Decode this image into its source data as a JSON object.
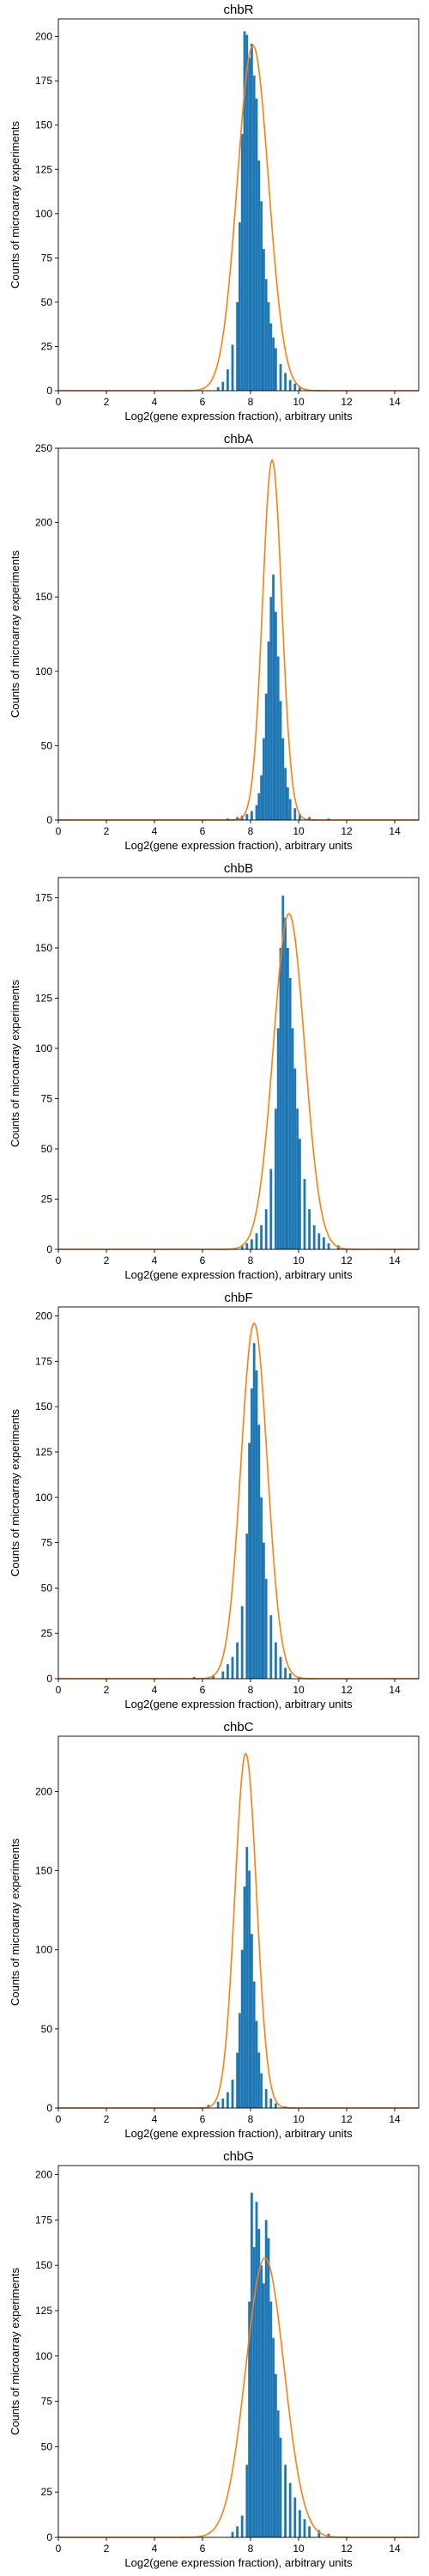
{
  "figure": {
    "xlabel": "Log2(gene expression fraction), arbitrary units",
    "ylabel": "Counts of microarray experiments"
  },
  "chart_data": [
    {
      "type": "bar",
      "title": "chbR",
      "xlabel": "Log2(gene expression fraction), arbitrary units",
      "ylabel": "Counts of microarray experiments",
      "xlim": [
        0,
        15
      ],
      "ylim": [
        0,
        210
      ],
      "xticks": [
        0,
        2,
        4,
        6,
        8,
        10,
        12,
        14
      ],
      "yticks": [
        0,
        25,
        50,
        75,
        100,
        125,
        150,
        175,
        200
      ],
      "fit": {
        "mean": 8.1,
        "sd": 0.65,
        "peak": 195
      },
      "series": [
        {
          "type": "histogram",
          "color": "#1f77b4",
          "bins": [
            [
              6.6,
              2
            ],
            [
              6.8,
              5
            ],
            [
              7.0,
              12
            ],
            [
              7.2,
              26
            ],
            [
              7.4,
              50
            ],
            [
              7.5,
              95
            ],
            [
              7.6,
              145
            ],
            [
              7.7,
              203
            ],
            [
              7.8,
              201
            ],
            [
              7.9,
              188
            ],
            [
              8.0,
              196
            ],
            [
              8.1,
              178
            ],
            [
              8.2,
              165
            ],
            [
              8.3,
              130
            ],
            [
              8.4,
              107
            ],
            [
              8.5,
              80
            ],
            [
              8.6,
              63
            ],
            [
              8.7,
              50
            ],
            [
              8.8,
              38
            ],
            [
              8.9,
              30
            ],
            [
              9.0,
              24
            ],
            [
              9.2,
              15
            ],
            [
              9.4,
              10
            ],
            [
              9.6,
              6
            ],
            [
              9.8,
              4
            ],
            [
              10.0,
              2
            ]
          ]
        },
        {
          "type": "line",
          "color": "#ff7f0e"
        }
      ]
    },
    {
      "type": "bar",
      "title": "chbA",
      "xlabel": "Log2(gene expression fraction), arbitrary units",
      "ylabel": "Counts of microarray experiments",
      "xlim": [
        0,
        15
      ],
      "ylim": [
        0,
        250
      ],
      "xticks": [
        0,
        2,
        4,
        6,
        8,
        10,
        12,
        14
      ],
      "yticks": [
        0,
        50,
        100,
        150,
        200,
        250
      ],
      "fit": {
        "mean": 8.9,
        "sd": 0.4,
        "peak": 242
      },
      "series": [
        {
          "type": "histogram",
          "color": "#1f77b4",
          "bins": [
            [
              7.0,
              1
            ],
            [
              7.4,
              2
            ],
            [
              7.6,
              3
            ],
            [
              7.8,
              4
            ],
            [
              8.0,
              6
            ],
            [
              8.2,
              10
            ],
            [
              8.3,
              18
            ],
            [
              8.4,
              30
            ],
            [
              8.5,
              55
            ],
            [
              8.6,
              85
            ],
            [
              8.7,
              120
            ],
            [
              8.8,
              150
            ],
            [
              8.9,
              165
            ],
            [
              9.0,
              140
            ],
            [
              9.1,
              110
            ],
            [
              9.2,
              80
            ],
            [
              9.3,
              55
            ],
            [
              9.4,
              35
            ],
            [
              9.5,
              22
            ],
            [
              9.6,
              14
            ],
            [
              9.8,
              8
            ],
            [
              10.0,
              4
            ],
            [
              10.4,
              2
            ],
            [
              11.2,
              1
            ]
          ]
        },
        {
          "type": "line",
          "color": "#ff7f0e"
        }
      ]
    },
    {
      "type": "bar",
      "title": "chbB",
      "xlabel": "Log2(gene expression fraction), arbitrary units",
      "ylabel": "Counts of microarray experiments",
      "xlim": [
        0,
        15
      ],
      "ylim": [
        0,
        185
      ],
      "xticks": [
        0,
        2,
        4,
        6,
        8,
        10,
        12,
        14
      ],
      "yticks": [
        0,
        25,
        50,
        75,
        100,
        125,
        150,
        175
      ],
      "fit": {
        "mean": 9.6,
        "sd": 0.65,
        "peak": 167
      },
      "series": [
        {
          "type": "histogram",
          "color": "#1f77b4",
          "bins": [
            [
              7.6,
              2
            ],
            [
              7.8,
              3
            ],
            [
              8.0,
              5
            ],
            [
              8.2,
              8
            ],
            [
              8.4,
              12
            ],
            [
              8.6,
              20
            ],
            [
              8.8,
              40
            ],
            [
              9.0,
              70
            ],
            [
              9.1,
              110
            ],
            [
              9.2,
              150
            ],
            [
              9.3,
              176
            ],
            [
              9.4,
              165
            ],
            [
              9.5,
              150
            ],
            [
              9.6,
              135
            ],
            [
              9.7,
              110
            ],
            [
              9.8,
              90
            ],
            [
              9.9,
              70
            ],
            [
              10.0,
              55
            ],
            [
              10.2,
              35
            ],
            [
              10.4,
              20
            ],
            [
              10.6,
              12
            ],
            [
              10.8,
              8
            ],
            [
              11.0,
              6
            ],
            [
              11.2,
              3
            ],
            [
              11.6,
              2
            ]
          ]
        },
        {
          "type": "line",
          "color": "#ff7f0e"
        }
      ]
    },
    {
      "type": "bar",
      "title": "chbF",
      "xlabel": "Log2(gene expression fraction), arbitrary units",
      "ylabel": "Counts of microarray experiments",
      "xlim": [
        0,
        15
      ],
      "ylim": [
        0,
        205
      ],
      "xticks": [
        0,
        2,
        4,
        6,
        8,
        10,
        12,
        14
      ],
      "yticks": [
        0,
        25,
        50,
        75,
        100,
        125,
        150,
        175,
        200
      ],
      "fit": {
        "mean": 8.15,
        "sd": 0.55,
        "peak": 196
      },
      "series": [
        {
          "type": "histogram",
          "color": "#1f77b4",
          "bins": [
            [
              5.6,
              1
            ],
            [
              6.4,
              2
            ],
            [
              6.8,
              4
            ],
            [
              7.0,
              8
            ],
            [
              7.2,
              12
            ],
            [
              7.4,
              20
            ],
            [
              7.6,
              40
            ],
            [
              7.8,
              80
            ],
            [
              7.9,
              130
            ],
            [
              8.0,
              160
            ],
            [
              8.1,
              185
            ],
            [
              8.2,
              170
            ],
            [
              8.3,
              140
            ],
            [
              8.4,
              100
            ],
            [
              8.5,
              75
            ],
            [
              8.6,
              55
            ],
            [
              8.8,
              35
            ],
            [
              9.0,
              20
            ],
            [
              9.2,
              12
            ],
            [
              9.4,
              6
            ],
            [
              9.6,
              3
            ],
            [
              10.0,
              1
            ]
          ]
        },
        {
          "type": "line",
          "color": "#ff7f0e"
        }
      ]
    },
    {
      "type": "bar",
      "title": "chbC",
      "xlabel": "Log2(gene expression fraction), arbitrary units",
      "ylabel": "Counts of microarray experiments",
      "xlim": [
        0,
        15
      ],
      "ylim": [
        0,
        235
      ],
      "xticks": [
        0,
        2,
        4,
        6,
        8,
        10,
        12,
        14
      ],
      "yticks": [
        0,
        50,
        100,
        150,
        200
      ],
      "fit": {
        "mean": 7.8,
        "sd": 0.45,
        "peak": 224
      },
      "series": [
        {
          "type": "histogram",
          "color": "#1f77b4",
          "bins": [
            [
              6.2,
              2
            ],
            [
              6.6,
              4
            ],
            [
              6.8,
              6
            ],
            [
              7.0,
              10
            ],
            [
              7.2,
              18
            ],
            [
              7.4,
              35
            ],
            [
              7.5,
              60
            ],
            [
              7.6,
              100
            ],
            [
              7.7,
              140
            ],
            [
              7.8,
              165
            ],
            [
              7.9,
              150
            ],
            [
              8.0,
              110
            ],
            [
              8.1,
              80
            ],
            [
              8.2,
              55
            ],
            [
              8.3,
              35
            ],
            [
              8.4,
              22
            ],
            [
              8.6,
              12
            ],
            [
              8.8,
              6
            ],
            [
              9.0,
              3
            ],
            [
              9.4,
              1
            ]
          ]
        },
        {
          "type": "line",
          "color": "#ff7f0e"
        }
      ]
    },
    {
      "type": "bar",
      "title": "chbG",
      "xlabel": "Log2(gene expression fraction), arbitrary units",
      "ylabel": "Counts of microarray experiments",
      "xlim": [
        0,
        15
      ],
      "ylim": [
        0,
        205
      ],
      "xticks": [
        0,
        2,
        4,
        6,
        8,
        10,
        12,
        14
      ],
      "yticks": [
        0,
        25,
        50,
        75,
        100,
        125,
        150,
        175,
        200
      ],
      "fit": {
        "mean": 8.6,
        "sd": 0.8,
        "peak": 154
      },
      "series": [
        {
          "type": "histogram",
          "color": "#1f77b4",
          "bins": [
            [
              7.2,
              3
            ],
            [
              7.4,
              6
            ],
            [
              7.6,
              12
            ],
            [
              7.8,
              40
            ],
            [
              7.9,
              130
            ],
            [
              8.0,
              190
            ],
            [
              8.1,
              160
            ],
            [
              8.2,
              185
            ],
            [
              8.3,
              170
            ],
            [
              8.4,
              150
            ],
            [
              8.5,
              140
            ],
            [
              8.6,
              175
            ],
            [
              8.7,
              165
            ],
            [
              8.8,
              130
            ],
            [
              8.9,
              110
            ],
            [
              9.0,
              90
            ],
            [
              9.1,
              70
            ],
            [
              9.2,
              55
            ],
            [
              9.4,
              40
            ],
            [
              9.6,
              30
            ],
            [
              9.8,
              22
            ],
            [
              10.0,
              15
            ],
            [
              10.2,
              10
            ],
            [
              10.4,
              6
            ],
            [
              10.8,
              4
            ],
            [
              11.2,
              2
            ]
          ]
        },
        {
          "type": "line",
          "color": "#ff7f0e"
        }
      ]
    }
  ]
}
